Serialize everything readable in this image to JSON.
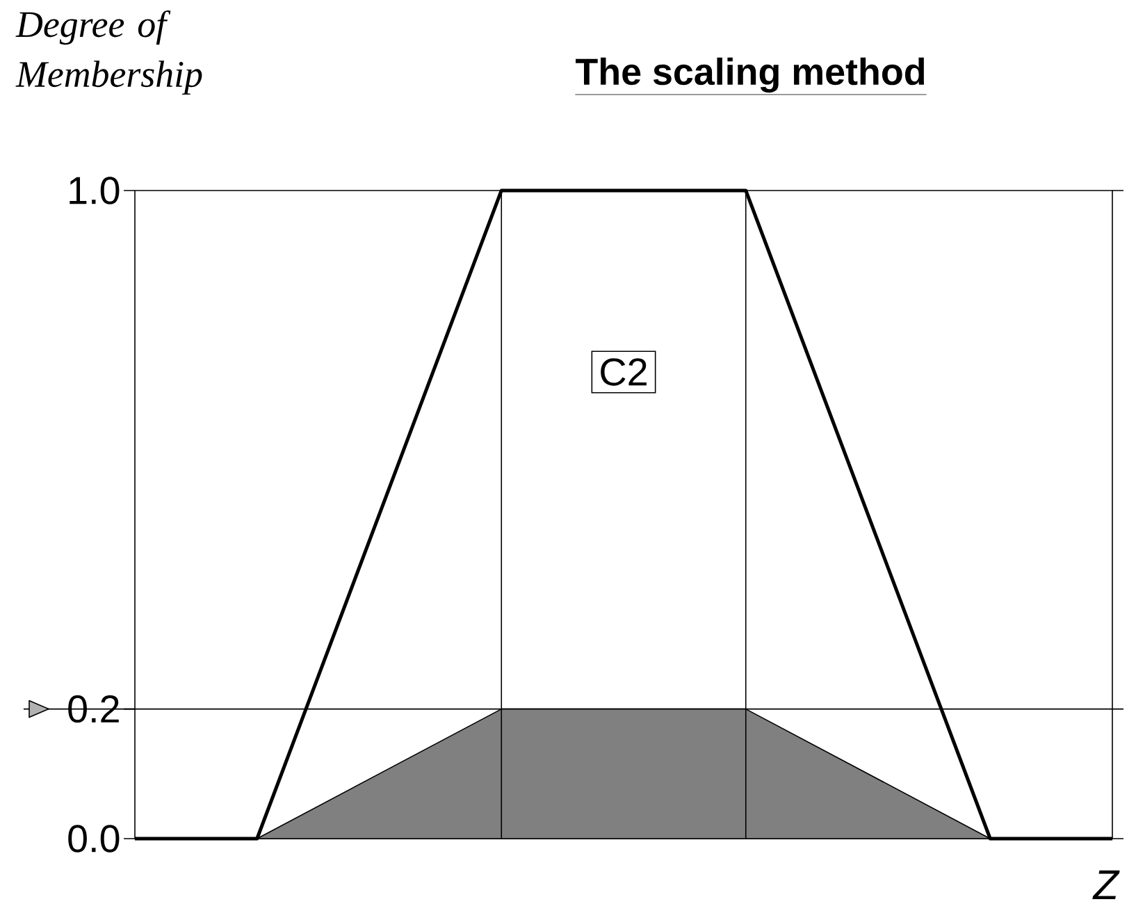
{
  "chart_data": {
    "type": "line",
    "title": "The scaling method",
    "ylabel": "Degree of Membership",
    "xlabel": "Z",
    "categories": [
      null,
      null,
      null,
      null,
      null,
      null,
      null,
      null,
      null
    ],
    "series": [
      {
        "type": "area",
        "color": "#808080",
        "values": [
          0,
          0,
          0.1,
          0.2,
          0.2,
          0.2,
          0.1,
          0,
          0
        ]
      },
      {
        "color": "#000000",
        "values": [
          0,
          0,
          0.5,
          1,
          1,
          1,
          0.5,
          0,
          0
        ]
      }
    ],
    "ylim": [
      0,
      1
    ],
    "yticks": [
      {
        "value": 0,
        "label": "0.0"
      },
      {
        "value": 0.2,
        "label": "0.2"
      },
      {
        "value": 1,
        "label": "1.0"
      }
    ],
    "tick_labels": "y",
    "ref_lines": [
      {
        "axis": "y",
        "value": 0.2
      }
    ],
    "annotations": [
      "C2"
    ]
  }
}
